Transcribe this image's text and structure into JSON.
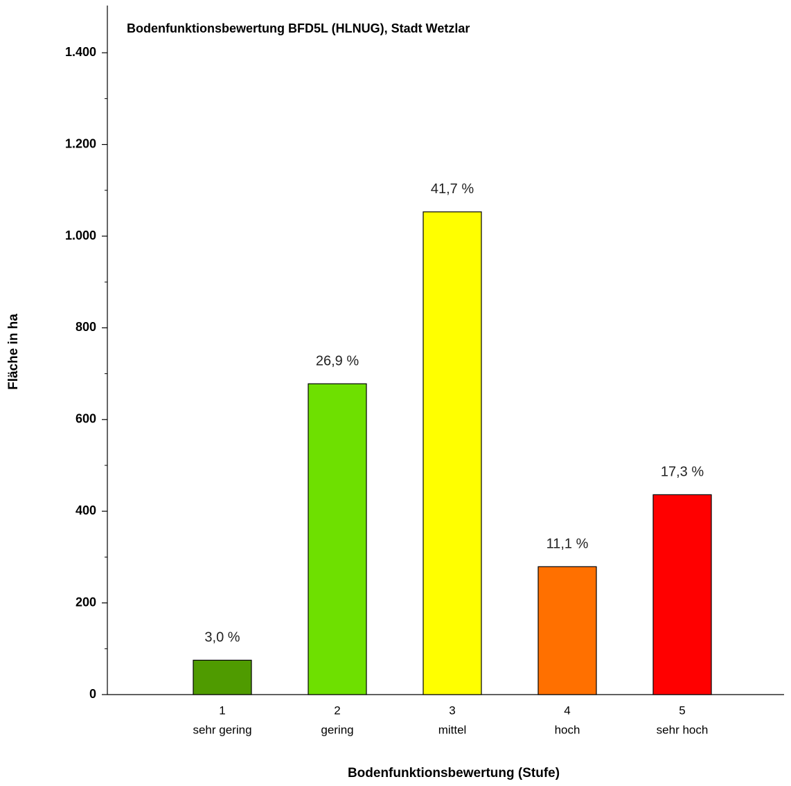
{
  "chart_data": {
    "type": "bar",
    "title": "Bodenfunktionsbewertung BFD5L (HLNUG), Stadt Wetzlar",
    "y_label": "Fläche in ha",
    "x_label": "Bodenfunktionsbewertung (Stufe)",
    "categories": [
      "1",
      "2",
      "3",
      "4",
      "5"
    ],
    "category_names": [
      "sehr gering",
      "gering",
      "mittel",
      "hoch",
      "sehr hoch"
    ],
    "values": [
      75,
      678,
      1053,
      279,
      436
    ],
    "colors": [
      "#4f9b00",
      "#6ee000",
      "#ffff00",
      "#ff7000",
      "#ff0000"
    ],
    "shares": [
      3.0,
      26.9,
      41.7,
      11.1,
      17.3
    ],
    "share_labels": [
      "3,0 %",
      "26,9 %",
      "41,7 %",
      "11,1 %",
      "17,3 %"
    ],
    "ylim": [
      0,
      1500
    ],
    "yticks": [
      0,
      200,
      400,
      600,
      800,
      {
        "value": 1000,
        "label": "1.000"
      },
      {
        "value": 1200,
        "label": "1.200"
      },
      {
        "value": 1400,
        "label": "1.400"
      }
    ],
    "yminorticks": [
      100,
      300,
      500,
      700,
      900,
      1100,
      1300
    ]
  }
}
